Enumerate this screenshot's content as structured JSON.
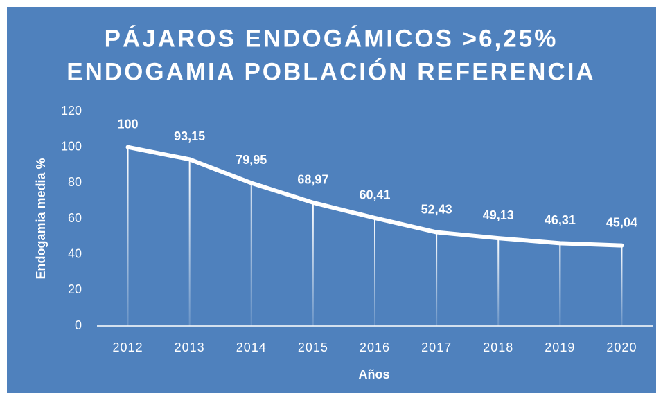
{
  "chart_data": {
    "type": "line",
    "title": [
      "PÁJAROS ENDOGÁMICOS >6,25%",
      "ENDOGAMIA POBLACIÓN REFERENCIA"
    ],
    "xlabel": "Años",
    "ylabel": "Endogamia media %",
    "categories": [
      "2012",
      "2013",
      "2014",
      "2015",
      "2016",
      "2017",
      "2018",
      "2019",
      "2020"
    ],
    "values": [
      100,
      93.15,
      79.95,
      68.97,
      60.41,
      52.43,
      49.13,
      46.31,
      45.04
    ],
    "value_labels": [
      "100",
      "93,15",
      "79,95",
      "68,97",
      "60,41",
      "52,43",
      "49,13",
      "46,31",
      "45,04"
    ],
    "color": "#ffffff",
    "background": "#4f81bd",
    "drop_lines": true,
    "ylim": [
      0,
      120
    ],
    "yticks": [
      0,
      20,
      40,
      60,
      80,
      100,
      120
    ],
    "grid": false
  }
}
